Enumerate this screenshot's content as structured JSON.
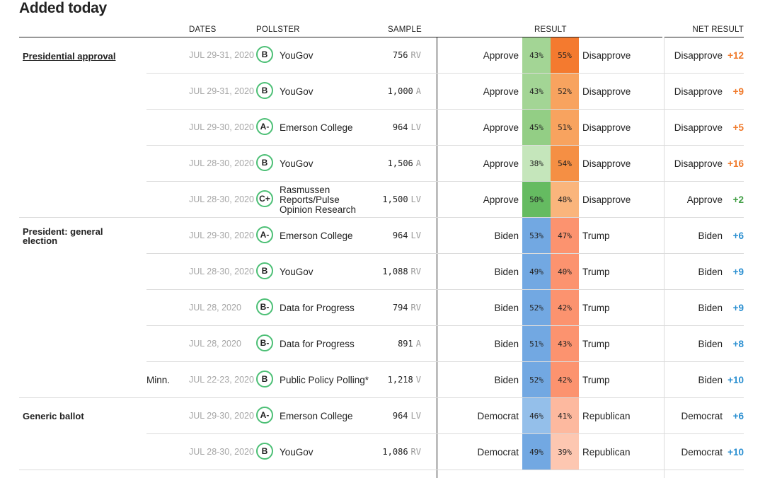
{
  "section_title": "Added today",
  "columns": {
    "dates": "DATES",
    "pollster": "POLLSTER",
    "sample": "SAMPLE",
    "result": "RESULT",
    "net_result": "NET RESULT"
  },
  "groups": [
    {
      "label": "Presidential approval",
      "is_link": true
    },
    {
      "label": "President: general election",
      "is_link": false
    },
    {
      "label": "Generic ballot",
      "is_link": false
    }
  ],
  "colors": {
    "grade_ring": "#4cbf75",
    "net_disapprove": "#f07a2b",
    "net_approve": "#43a047",
    "net_biden": "#2a8fd1",
    "net_democrat": "#2a8fd1"
  },
  "rows": [
    {
      "state": "",
      "dates": "JUL 29-31, 2020",
      "grade": "B",
      "pollster": "YouGov",
      "sample": "756",
      "population": "RV",
      "left_name": "Approve",
      "left_pct": "43%",
      "left_color": "#a3d595",
      "right_pct": "55%",
      "right_color": "#f47a2f",
      "right_name": "Disapprove",
      "net_name": "Disapprove",
      "net_value": "+12",
      "net_color": "#f07a2b"
    },
    {
      "state": "",
      "dates": "JUL 29-31, 2020",
      "grade": "B",
      "pollster": "YouGov",
      "sample": "1,000",
      "population": "A",
      "left_name": "Approve",
      "left_pct": "43%",
      "left_color": "#a3d595",
      "right_pct": "52%",
      "right_color": "#f8a35f",
      "right_name": "Disapprove",
      "net_name": "Disapprove",
      "net_value": "+9",
      "net_color": "#f07a2b"
    },
    {
      "state": "",
      "dates": "JUL 29-30, 2020",
      "grade": "A-",
      "pollster": "Emerson College",
      "sample": "964",
      "population": "LV",
      "left_name": "Approve",
      "left_pct": "45%",
      "left_color": "#93ce85",
      "right_pct": "51%",
      "right_color": "#f8a35f",
      "right_name": "Disapprove",
      "net_name": "Disapprove",
      "net_value": "+5",
      "net_color": "#f07a2b"
    },
    {
      "state": "",
      "dates": "JUL 28-30, 2020",
      "grade": "B",
      "pollster": "YouGov",
      "sample": "1,506",
      "population": "A",
      "left_name": "Approve",
      "left_pct": "38%",
      "left_color": "#c5e6bb",
      "right_pct": "54%",
      "right_color": "#f58f44",
      "right_name": "Disapprove",
      "net_name": "Disapprove",
      "net_value": "+16",
      "net_color": "#f07a2b"
    },
    {
      "state": "",
      "dates": "JUL 28-30, 2020",
      "grade": "C+",
      "pollster": "Rasmussen Reports/Pulse Opinion Research",
      "sample": "1,500",
      "population": "LV",
      "left_name": "Approve",
      "left_pct": "50%",
      "left_color": "#65bb61",
      "right_pct": "48%",
      "right_color": "#fab57c",
      "right_name": "Disapprove",
      "net_name": "Approve",
      "net_value": "+2",
      "net_color": "#43a047"
    },
    {
      "state": "",
      "dates": "JUL 29-30, 2020",
      "grade": "A-",
      "pollster": "Emerson College",
      "sample": "964",
      "population": "LV",
      "left_name": "Biden",
      "left_pct": "53%",
      "left_color": "#72a8e2",
      "right_pct": "47%",
      "right_color": "#fc936f",
      "right_name": "Trump",
      "net_name": "Biden",
      "net_value": "+6",
      "net_color": "#2a8fd1"
    },
    {
      "state": "",
      "dates": "JUL 28-30, 2020",
      "grade": "B",
      "pollster": "YouGov",
      "sample": "1,088",
      "population": "RV",
      "left_name": "Biden",
      "left_pct": "49%",
      "left_color": "#72a8e2",
      "right_pct": "40%",
      "right_color": "#fc936f",
      "right_name": "Trump",
      "net_name": "Biden",
      "net_value": "+9",
      "net_color": "#2a8fd1"
    },
    {
      "state": "",
      "dates": "JUL 28, 2020",
      "grade": "B-",
      "pollster": "Data for Progress",
      "sample": "794",
      "population": "RV",
      "left_name": "Biden",
      "left_pct": "52%",
      "left_color": "#72a8e2",
      "right_pct": "42%",
      "right_color": "#fc936f",
      "right_name": "Trump",
      "net_name": "Biden",
      "net_value": "+9",
      "net_color": "#2a8fd1"
    },
    {
      "state": "",
      "dates": "JUL 28, 2020",
      "grade": "B-",
      "pollster": "Data for Progress",
      "sample": "891",
      "population": "A",
      "left_name": "Biden",
      "left_pct": "51%",
      "left_color": "#72a8e2",
      "right_pct": "43%",
      "right_color": "#fc936f",
      "right_name": "Trump",
      "net_name": "Biden",
      "net_value": "+8",
      "net_color": "#2a8fd1"
    },
    {
      "state": "Minn.",
      "dates": "JUL 22-23, 2020",
      "grade": "B",
      "pollster": "Public Policy Polling*",
      "sample": "1,218",
      "population": "V",
      "left_name": "Biden",
      "left_pct": "52%",
      "left_color": "#72a8e2",
      "right_pct": "42%",
      "right_color": "#fc936f",
      "right_name": "Trump",
      "net_name": "Biden",
      "net_value": "+10",
      "net_color": "#2a8fd1"
    },
    {
      "state": "",
      "dates": "JUL 29-30, 2020",
      "grade": "A-",
      "pollster": "Emerson College",
      "sample": "964",
      "population": "LV",
      "left_name": "Democrat",
      "left_pct": "46%",
      "left_color": "#94bfea",
      "right_pct": "41%",
      "right_color": "#fdb99f",
      "right_name": "Republican",
      "net_name": "Democrat",
      "net_value": "+6",
      "net_color": "#2a8fd1"
    },
    {
      "state": "",
      "dates": "JUL 28-30, 2020",
      "grade": "B",
      "pollster": "YouGov",
      "sample": "1,086",
      "population": "RV",
      "left_name": "Democrat",
      "left_pct": "49%",
      "left_color": "#72a8e2",
      "right_pct": "39%",
      "right_color": "#fdc7b1",
      "right_name": "Republican",
      "net_name": "Democrat",
      "net_value": "+10",
      "net_color": "#2a8fd1"
    }
  ]
}
